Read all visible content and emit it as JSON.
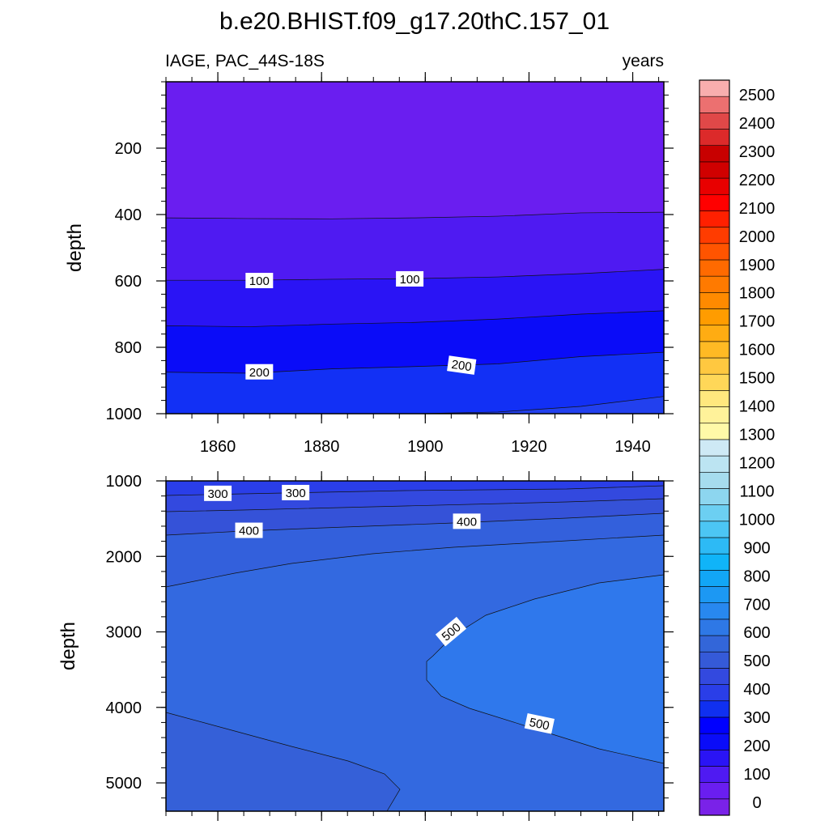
{
  "title": "b.e20.BHIST.f09_g17.20thC.157_01",
  "subtitle_left": "IAGE, PAC_44S-18S",
  "subtitle_right": "years",
  "colorbar": {
    "labels": [
      "0",
      "100",
      "200",
      "300",
      "400",
      "500",
      "600",
      "700",
      "800",
      "900",
      "1000",
      "1100",
      "1200",
      "1300",
      "1400",
      "1500",
      "1600",
      "1700",
      "1800",
      "1900",
      "2000",
      "2100",
      "2200",
      "2300",
      "2400",
      "2500"
    ],
    "colors": [
      "#7a22e8",
      "#6a1ef0",
      "#4f1af2",
      "#2a14f5",
      "#0a0cf8",
      "#0000ff",
      "#1030f0",
      "#2a3ee8",
      "#3349df",
      "#355ad8",
      "#3366d9",
      "#2e78e6",
      "#2888ef",
      "#1c98f3",
      "#12a6f6",
      "#10b4f8",
      "#2dbaf5",
      "#4cc6f4",
      "#6ccff2",
      "#8dd6ef",
      "#a6dcee",
      "#bce4f2",
      "#cee9f5",
      "#fff9a8",
      "#fff29a",
      "#ffe87e",
      "#ffd758",
      "#ffc840",
      "#ffba24",
      "#ffac12",
      "#ff9c00",
      "#ff8a00",
      "#ff7a00",
      "#ff6a00",
      "#ff5400",
      "#ff3c00",
      "#ff2000",
      "#ff0000",
      "#e80000",
      "#d00000",
      "#c80000",
      "#dc2a2a",
      "#e04848",
      "#ec7070",
      "#f8aeae"
    ]
  },
  "chart_data": [
    {
      "type": "contour",
      "panel": "upper",
      "x": {
        "ticks": [
          1860,
          1880,
          1900,
          1920,
          1940
        ],
        "range": [
          1850,
          1946
        ]
      },
      "y": {
        "label": "depth",
        "ticks": [
          200,
          400,
          600,
          800,
          1000
        ],
        "range": [
          0,
          1000
        ],
        "inverted": true
      },
      "contours": [
        {
          "level": 50,
          "depths": [
            410,
            412,
            413,
            410,
            405,
            395,
            393
          ]
        },
        {
          "level": 100,
          "depths": [
            598,
            598,
            595,
            593,
            588,
            578,
            565
          ]
        },
        {
          "level": 150,
          "depths": [
            735,
            738,
            730,
            725,
            715,
            700,
            690
          ]
        },
        {
          "level": 200,
          "depths": [
            875,
            878,
            865,
            858,
            850,
            828,
            815
          ]
        },
        {
          "level": 250,
          "depths": [
            1000,
            1000,
            1000,
            1000,
            995,
            978,
            948
          ]
        }
      ],
      "x_nodes": [
        1850,
        1866,
        1882,
        1898,
        1914,
        1930,
        1946
      ],
      "labels": [
        {
          "text": "100",
          "x": 1868,
          "depth": 600
        },
        {
          "text": "100",
          "x": 1897,
          "depth": 595
        },
        {
          "text": "200",
          "x": 1868,
          "depth": 875
        },
        {
          "text": "200",
          "x": 1907,
          "depth": 855,
          "rotation": 8
        }
      ]
    },
    {
      "type": "contour",
      "panel": "lower",
      "x": {
        "ticks": [
          1860,
          1880,
          1900,
          1920,
          1940
        ],
        "range": [
          1850,
          1946
        ]
      },
      "y": {
        "label": "depth",
        "ticks": [
          1000,
          2000,
          3000,
          4000,
          5000
        ],
        "range": [
          1000,
          5375
        ],
        "inverted": true
      },
      "labels": [
        {
          "text": "300",
          "x": 1860,
          "depth": 1170
        },
        {
          "text": "300",
          "x": 1875,
          "depth": 1160
        },
        {
          "text": "400",
          "x": 1866,
          "depth": 1660
        },
        {
          "text": "400",
          "x": 1908,
          "depth": 1540
        },
        {
          "text": "500",
          "x": 1905,
          "depth": 3000,
          "rotation": -40
        },
        {
          "text": "500",
          "x": 1922,
          "depth": 4220,
          "rotation": 12
        }
      ]
    }
  ]
}
